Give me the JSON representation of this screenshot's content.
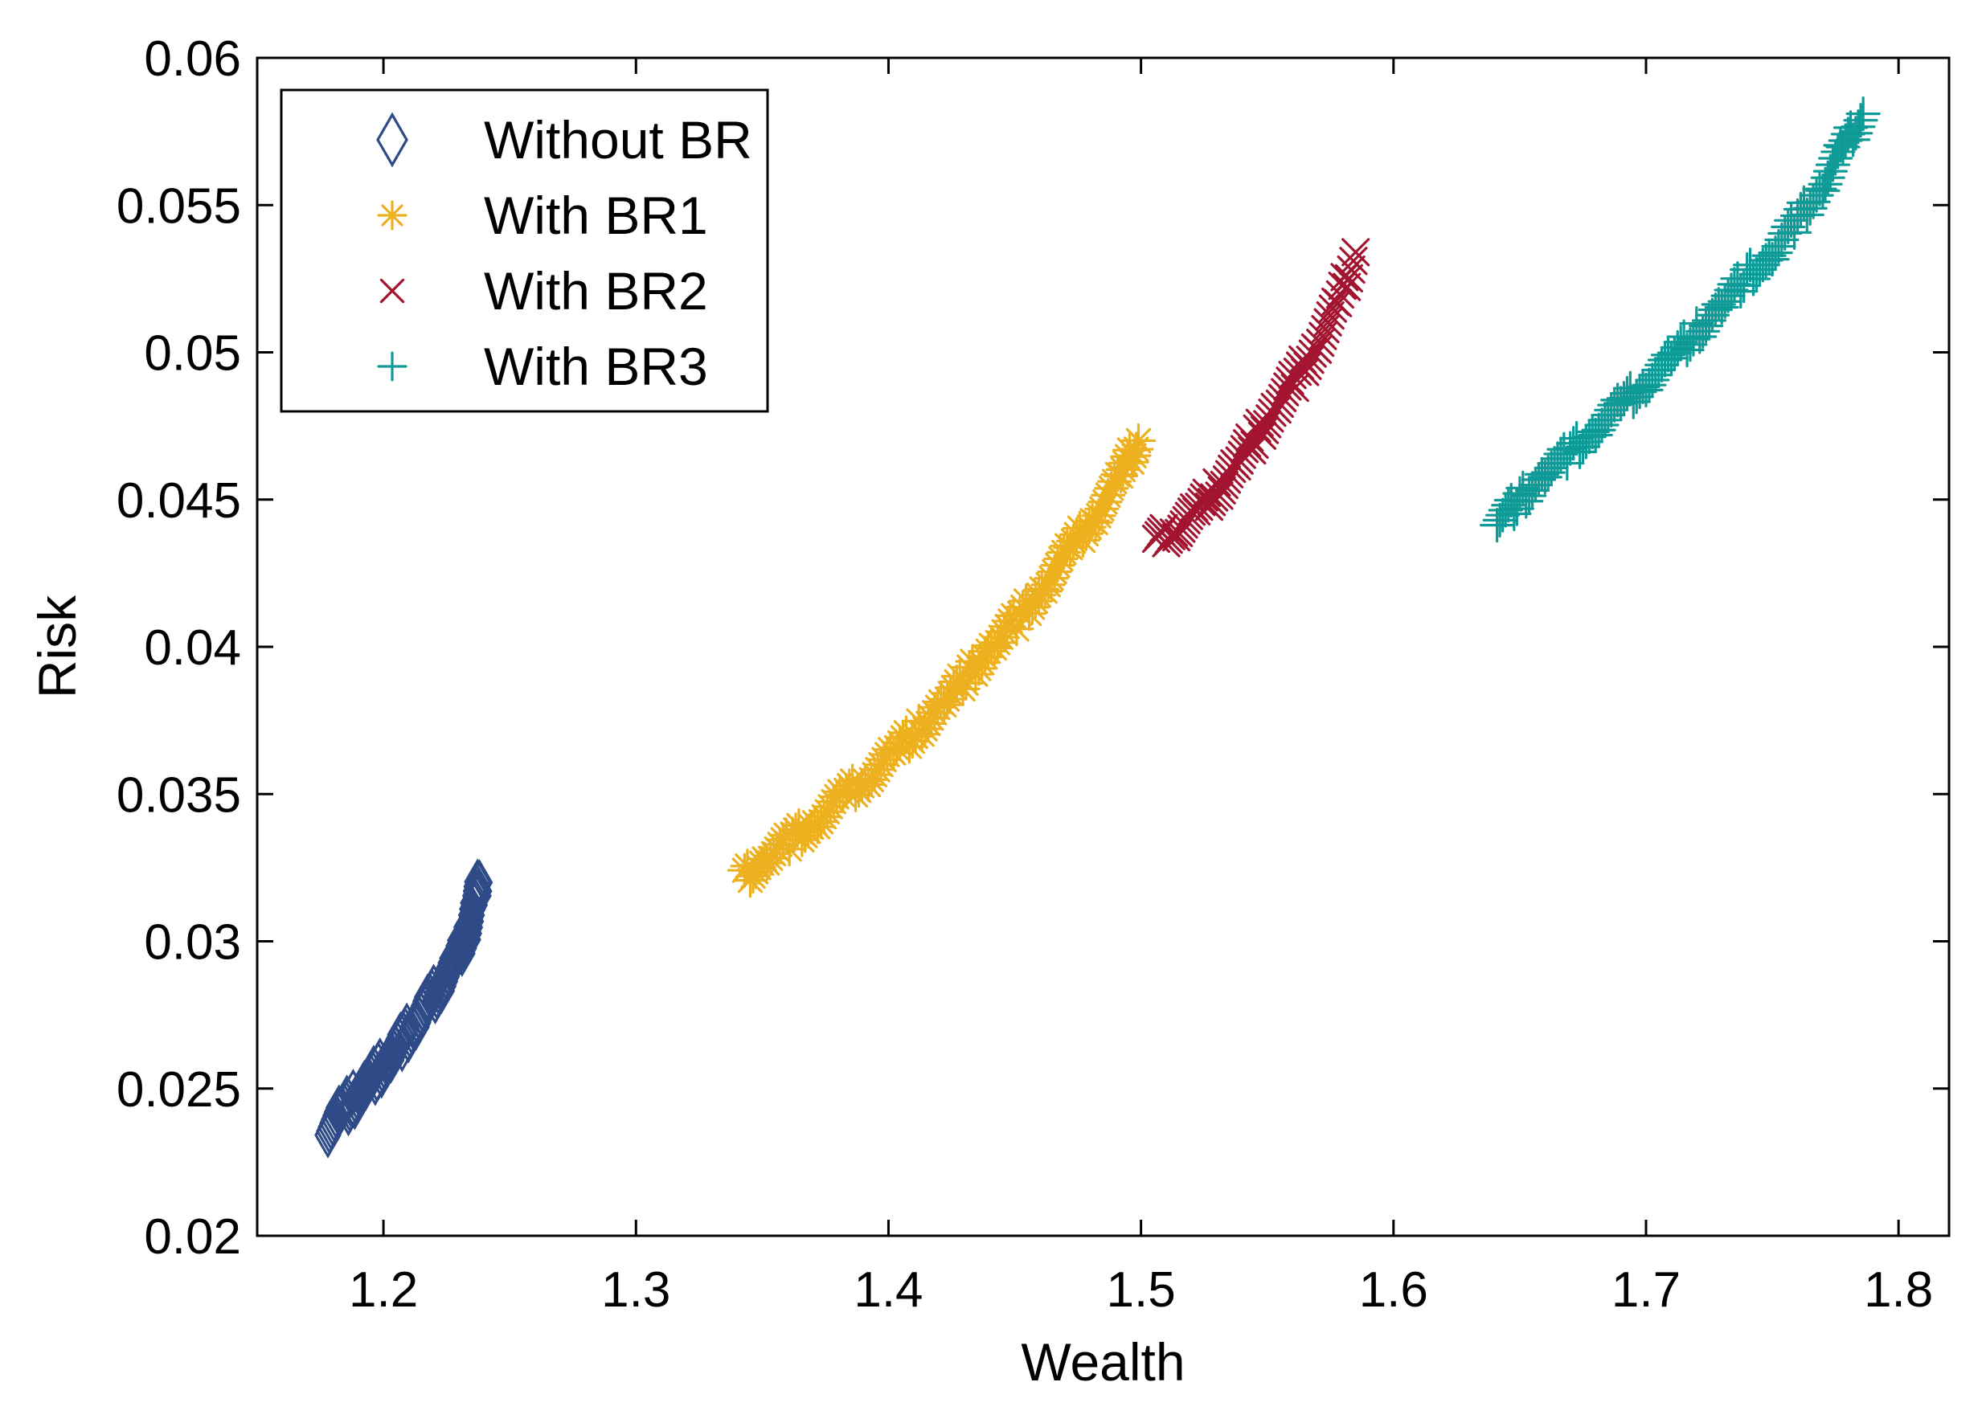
{
  "chart_data": {
    "type": "scatter",
    "title": "",
    "xlabel": "Wealth",
    "ylabel": "Risk",
    "xlim": [
      1.15,
      1.82
    ],
    "ylim": [
      0.02,
      0.06
    ],
    "xticks": [
      1.2,
      1.3,
      1.4,
      1.5,
      1.6,
      1.7,
      1.8
    ],
    "xtick_labels": [
      "1.2",
      "1.3",
      "1.4",
      "1.5",
      "1.6",
      "1.7",
      "1.8"
    ],
    "yticks": [
      0.02,
      0.025,
      0.03,
      0.035,
      0.04,
      0.045,
      0.05,
      0.055,
      0.06
    ],
    "ytick_labels": [
      "0.02",
      "0.025",
      "0.03",
      "0.035",
      "0.04",
      "0.045",
      "0.05",
      "0.055",
      "0.06"
    ],
    "grid": false,
    "legend_position": "top-left",
    "series": [
      {
        "name": "Without BR",
        "marker": "diamond",
        "color": "#2E4A87",
        "points": [
          [
            1.178,
            0.0237
          ],
          [
            1.183,
            0.0242
          ],
          [
            1.188,
            0.0246
          ],
          [
            1.193,
            0.0251
          ],
          [
            1.198,
            0.0256
          ],
          [
            1.203,
            0.0261
          ],
          [
            1.208,
            0.0267
          ],
          [
            1.213,
            0.0273
          ],
          [
            1.218,
            0.0279
          ],
          [
            1.223,
            0.0286
          ],
          [
            1.228,
            0.0293
          ],
          [
            1.233,
            0.0302
          ],
          [
            1.236,
            0.0313
          ],
          [
            1.238,
            0.032
          ]
        ]
      },
      {
        "name": "With BR1",
        "marker": "asterisk",
        "color": "#EDB120",
        "points": [
          [
            1.343,
            0.0322
          ],
          [
            1.352,
            0.0328
          ],
          [
            1.362,
            0.0335
          ],
          [
            1.372,
            0.0341
          ],
          [
            1.382,
            0.0349
          ],
          [
            1.392,
            0.0356
          ],
          [
            1.402,
            0.0364
          ],
          [
            1.412,
            0.0372
          ],
          [
            1.422,
            0.0381
          ],
          [
            1.432,
            0.0391
          ],
          [
            1.442,
            0.0401
          ],
          [
            1.452,
            0.041
          ],
          [
            1.462,
            0.0421
          ],
          [
            1.472,
            0.0433
          ],
          [
            1.482,
            0.0445
          ],
          [
            1.492,
            0.0458
          ],
          [
            1.499,
            0.047
          ]
        ]
      },
      {
        "name": "With BR2",
        "marker": "x",
        "color": "#A2142F",
        "points": [
          [
            1.506,
            0.0436
          ],
          [
            1.514,
            0.044
          ],
          [
            1.522,
            0.0446
          ],
          [
            1.53,
            0.0453
          ],
          [
            1.538,
            0.0462
          ],
          [
            1.546,
            0.0472
          ],
          [
            1.554,
            0.0482
          ],
          [
            1.562,
            0.0492
          ],
          [
            1.57,
            0.0503
          ],
          [
            1.578,
            0.0516
          ],
          [
            1.585,
            0.0534
          ]
        ]
      },
      {
        "name": "With BR3",
        "marker": "plus",
        "color": "#0E9A97",
        "points": [
          [
            1.641,
            0.0442
          ],
          [
            1.65,
            0.045
          ],
          [
            1.66,
            0.0459
          ],
          [
            1.67,
            0.0466
          ],
          [
            1.68,
            0.0474
          ],
          [
            1.69,
            0.0482
          ],
          [
            1.7,
            0.049
          ],
          [
            1.71,
            0.0498
          ],
          [
            1.72,
            0.0507
          ],
          [
            1.73,
            0.0516
          ],
          [
            1.74,
            0.0526
          ],
          [
            1.75,
            0.0533
          ],
          [
            1.76,
            0.0545
          ],
          [
            1.77,
            0.0557
          ],
          [
            1.778,
            0.0569
          ],
          [
            1.786,
            0.0581
          ]
        ]
      }
    ]
  }
}
